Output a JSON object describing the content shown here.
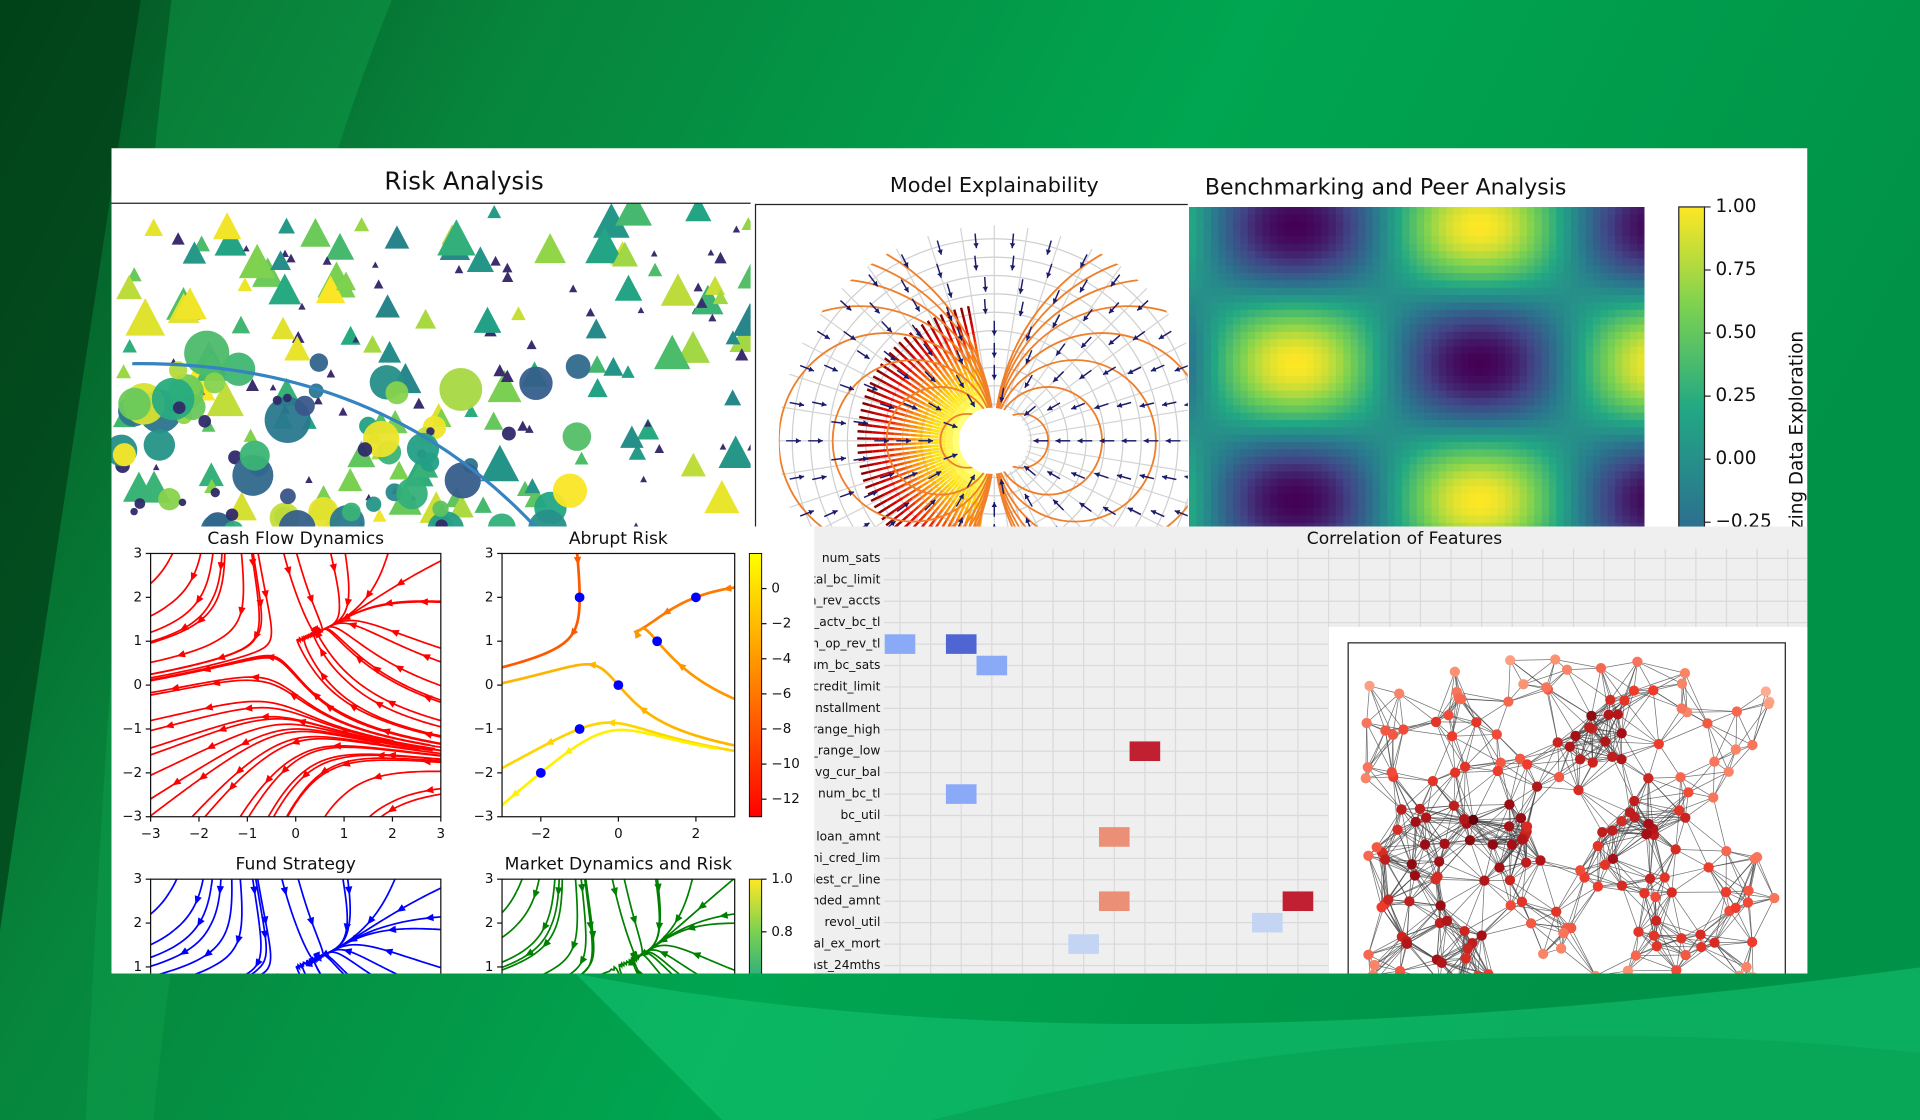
{
  "chart_data": [
    {
      "type": "scatter",
      "title": "Risk Analysis"
    },
    {
      "type": "quiver",
      "title": "Model Explainability"
    },
    {
      "type": "image",
      "title": "Benchmarking and Peer Analysis",
      "colorbar": {
        "label": "zing Data Exploration",
        "colormap": "viridis",
        "ylim": [
          -1,
          1
        ],
        "yticks": [
          {
            "value": 1,
            "label": "1.00"
          },
          {
            "value": 0.75,
            "label": "0.75"
          },
          {
            "value": 0.5,
            "label": "0.50"
          },
          {
            "value": 0.25,
            "label": "0.25"
          },
          {
            "value": 0,
            "label": "0.00"
          },
          {
            "value": -0.25,
            "label": "−0.25"
          }
        ]
      }
    },
    {
      "type": "streamplot",
      "title": "Cash Flow Dynamics",
      "color": "#ff0000",
      "xlim": [
        -3,
        3
      ],
      "ylim": [
        -3,
        3
      ],
      "xticks": [
        {
          "value": -3,
          "label": "−3"
        },
        {
          "value": -2,
          "label": "−2"
        },
        {
          "value": -1,
          "label": "−1"
        },
        0,
        1,
        2,
        3
      ],
      "yticks": [
        {
          "value": -3,
          "label": "−3"
        },
        {
          "value": -2,
          "label": "−2"
        },
        {
          "value": -1,
          "label": "−1"
        },
        0,
        1,
        2,
        3
      ]
    },
    {
      "type": "streamplot",
      "title": "Abrupt Risk",
      "colormap": "autumn",
      "xlim": [
        -3,
        3
      ],
      "ylim": [
        -3,
        3
      ],
      "xticks": [
        {
          "value": -2,
          "label": "−2"
        },
        0,
        2
      ],
      "yticks": [
        {
          "value": -3,
          "label": "−3"
        },
        {
          "value": -2,
          "label": "−2"
        },
        {
          "value": -1,
          "label": "−1"
        },
        0,
        1,
        2,
        3
      ],
      "points": {
        "color": "#0000ff",
        "x": [
          -1,
          2,
          1,
          0,
          -1,
          -2
        ],
        "y": [
          2,
          2,
          1,
          0,
          -1,
          -2
        ]
      },
      "colorbar": {
        "colormap": "autumn",
        "ylim": [
          -13,
          2
        ],
        "yticks": [
          0,
          {
            "value": -2,
            "label": "−2"
          },
          {
            "value": -4,
            "label": "−4"
          },
          {
            "value": -6,
            "label": "−6"
          },
          {
            "value": -8,
            "label": "−8"
          },
          {
            "value": -10,
            "label": "−10"
          },
          {
            "value": -12,
            "label": "−12"
          }
        ]
      }
    },
    {
      "type": "streamplot",
      "title": "Fund Strategy",
      "color": "#0000ff",
      "xlim": [
        -3,
        3
      ],
      "ylim": [
        -3,
        3
      ],
      "yticks": [
        1,
        2,
        3
      ]
    },
    {
      "type": "streamplot",
      "title": "Market Dynamics and Risk",
      "color": "#008000",
      "xlim": [
        -3,
        3
      ],
      "ylim": [
        -3,
        3
      ],
      "yticks": [
        1,
        2,
        3
      ],
      "colorbar": {
        "colormap": "viridis",
        "ylim": [
          0,
          1
        ],
        "yticks": [
          {
            "value": 1,
            "label": "1.0"
          },
          {
            "value": 0.8,
            "label": "0.8"
          }
        ]
      }
    },
    {
      "type": "heatmap",
      "title": "Correlation of Features",
      "colormap": "coolwarm",
      "vlim": [
        -1,
        1
      ],
      "rows": [
        "num_sats",
        "tal_bc_limit",
        "n_rev_accts",
        "_actv_bc_tl",
        "m_op_rev_tl",
        "um_bc_sats",
        "credit_limit",
        "installment",
        "range_high",
        "_range_low",
        "avg_cur_bal",
        "num_bc_tl",
        "bc_util",
        "loan_amnt",
        "hi_cred_lim",
        "liest_cr_line",
        "nded_amnt",
        "revol_util",
        "bal_ex_mort",
        "ast_24mths"
      ],
      "cells": [
        {
          "row": 4,
          "col": 0,
          "value": -0.6
        },
        {
          "row": 4,
          "col": 2,
          "value": -0.9
        },
        {
          "row": 5,
          "col": 3,
          "value": -0.6
        },
        {
          "row": 9,
          "col": 8,
          "value": 0.9
        },
        {
          "row": 11,
          "col": 2,
          "value": -0.6
        },
        {
          "row": 13,
          "col": 7,
          "value": 0.45
        },
        {
          "row": 16,
          "col": 7,
          "value": 0.45
        },
        {
          "row": 16,
          "col": 13,
          "value": 0.9
        },
        {
          "row": 17,
          "col": 12,
          "value": -0.3
        },
        {
          "row": 18,
          "col": 6,
          "value": -0.3
        }
      ]
    },
    {
      "type": "network"
    }
  ]
}
